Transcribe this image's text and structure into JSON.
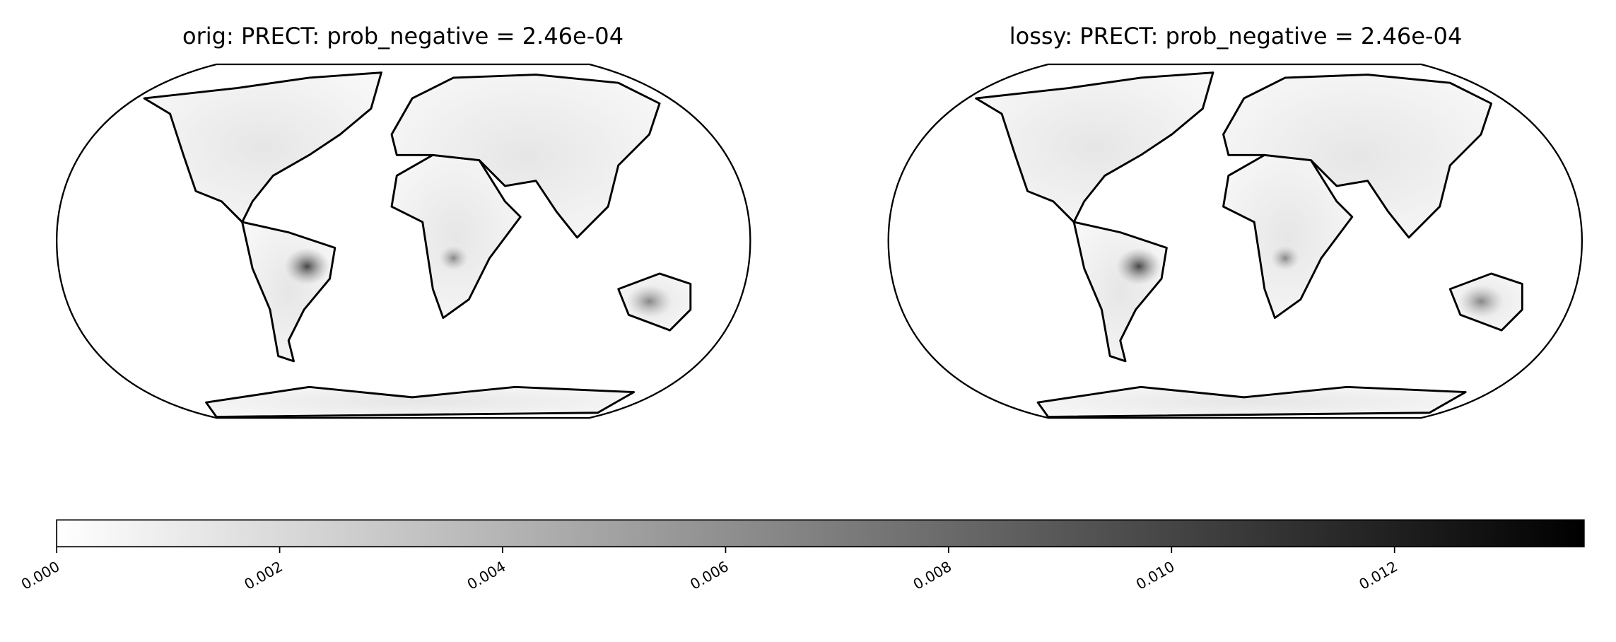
{
  "panels": [
    {
      "title": "orig: PRECT: prob_negative =  2.46e-04"
    },
    {
      "title": "lossy: PRECT: prob_negative =  2.46e-04"
    }
  ],
  "colorbar": {
    "lim": [
      0,
      0.0137
    ],
    "colors": [
      "#ffffff",
      "#000000"
    ],
    "ticks": [
      {
        "value": 0,
        "label": "0.000"
      },
      {
        "value": 0.002,
        "label": "0.002"
      },
      {
        "value": 0.004,
        "label": "0.004"
      },
      {
        "value": 0.006,
        "label": "0.006"
      },
      {
        "value": 0.008,
        "label": "0.008"
      },
      {
        "value": 0.01,
        "label": "0.010"
      },
      {
        "value": 0.012,
        "label": "0.012"
      }
    ]
  }
}
